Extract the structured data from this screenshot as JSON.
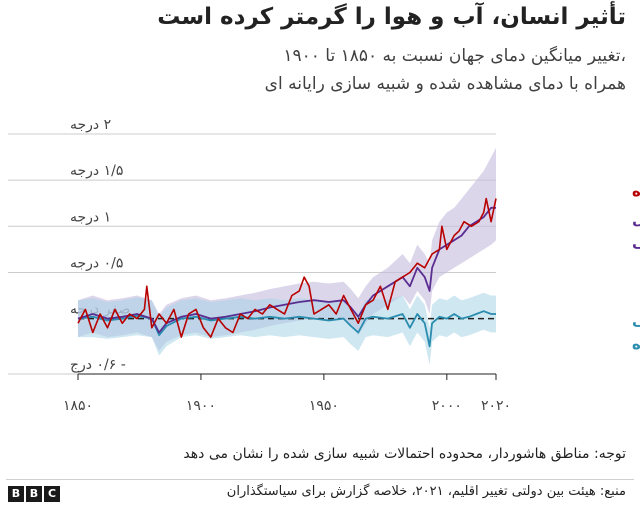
{
  "title": "تأثیر انسان، آب و هوا را گرمتر کرده است",
  "subtitle_line1": "تغییر میانگین دمای جهان نسبت به ۱۸۵۰ تا ۱۹۰۰،",
  "subtitle_line2": "همراه با دمای مشاهده شده و شبیه سازی رایانه ای",
  "note": "توجه: مناطق هاشوردار، محدوده احتمالات شبیه سازی شده را نشان می دهد",
  "source": "منبع: هیئت بین دولتی تغییر اقلیم، ۲۰۲۱، خلاصه گزارش برای سیاستگذاران",
  "brand_letters": [
    "B",
    "B",
    "C"
  ],
  "colors": {
    "observed": "#b80000",
    "human_natural": "#5a2d91",
    "human_natural_band": "#c5bbdd",
    "natural": "#2a8caf",
    "natural_band": "#a7d4e6",
    "zero_line": "#222222",
    "grid": "#cccccc"
  },
  "chart_data": {
    "type": "line",
    "xlim": [
      1850,
      2020
    ],
    "ylim": [
      -0.6,
      2
    ],
    "x_ticks": [
      1850,
      1900,
      1950,
      2000,
      2020
    ],
    "x_tick_labels": [
      "۱۸۵۰",
      "۱۹۰۰",
      "۱۹۵۰",
      "۲۰۰۰",
      "۲۰۲۰"
    ],
    "y_ticks": [
      -0.6,
      0,
      0.5,
      1,
      1.5,
      2
    ],
    "y_tick_labels": [
      "- ۰/۶ درج",
      "صفر درجه",
      "۰/۵ درجه",
      "۱ درجه",
      "۱/۵ درجه",
      "۲ درجه"
    ],
    "zero_line": "dashed",
    "grid": true,
    "series": [
      {
        "key": "observed",
        "name": "مشاهده شده",
        "x": [
          1850,
          1853,
          1856,
          1859,
          1862,
          1865,
          1868,
          1871,
          1874,
          1877,
          1878,
          1880,
          1883,
          1886,
          1889,
          1892,
          1895,
          1898,
          1901,
          1904,
          1907,
          1910,
          1913,
          1916,
          1919,
          1922,
          1925,
          1928,
          1931,
          1934,
          1937,
          1940,
          1942,
          1944,
          1946,
          1949,
          1952,
          1955,
          1958,
          1961,
          1964,
          1967,
          1970,
          1973,
          1976,
          1979,
          1982,
          1985,
          1988,
          1991,
          1994,
          1997,
          1998,
          2000,
          2003,
          2005,
          2007,
          2010,
          2013,
          2015,
          2016,
          2018,
          2020
        ],
        "y": [
          -0.05,
          0.1,
          -0.15,
          0.05,
          -0.1,
          0.1,
          -0.05,
          0.05,
          0.0,
          0.1,
          0.35,
          -0.1,
          0.05,
          -0.05,
          0.1,
          -0.2,
          0.05,
          0.1,
          -0.1,
          -0.2,
          0.0,
          -0.1,
          -0.15,
          0.05,
          0.0,
          0.1,
          0.05,
          0.15,
          0.1,
          0.05,
          0.25,
          0.3,
          0.45,
          0.35,
          0.05,
          0.1,
          0.15,
          0.05,
          0.25,
          0.1,
          -0.05,
          0.15,
          0.2,
          0.35,
          0.1,
          0.4,
          0.45,
          0.5,
          0.6,
          0.55,
          0.7,
          0.75,
          1.0,
          0.75,
          0.9,
          0.95,
          1.05,
          1.0,
          1.05,
          1.15,
          1.3,
          1.05,
          1.3
        ]
      },
      {
        "key": "human_natural",
        "name": "شبیه سازی عوامل انسانی و طبیعی",
        "x": [
          1850,
          1856,
          1862,
          1868,
          1874,
          1880,
          1883,
          1886,
          1892,
          1898,
          1904,
          1910,
          1916,
          1922,
          1928,
          1934,
          1940,
          1946,
          1952,
          1958,
          1961,
          1964,
          1967,
          1970,
          1976,
          1982,
          1985,
          1988,
          1991,
          1993,
          1994,
          1997,
          2000,
          2003,
          2006,
          2009,
          2012,
          2015,
          2018,
          2020
        ],
        "y": [
          0.0,
          0.05,
          0.0,
          0.02,
          0.05,
          0.0,
          -0.15,
          -0.05,
          0.02,
          0.05,
          0.0,
          0.02,
          0.05,
          0.08,
          0.12,
          0.15,
          0.18,
          0.2,
          0.18,
          0.2,
          0.12,
          0.02,
          0.15,
          0.25,
          0.35,
          0.45,
          0.35,
          0.55,
          0.45,
          0.3,
          0.55,
          0.75,
          0.8,
          0.85,
          0.9,
          1.0,
          1.05,
          1.1,
          1.2,
          1.2
        ],
        "band_lower": [
          -0.2,
          -0.15,
          -0.2,
          -0.18,
          -0.15,
          -0.2,
          -0.35,
          -0.25,
          -0.18,
          -0.15,
          -0.2,
          -0.18,
          -0.15,
          -0.12,
          -0.08,
          -0.05,
          -0.02,
          0.0,
          -0.02,
          0.0,
          -0.08,
          -0.18,
          -0.05,
          0.05,
          0.15,
          0.25,
          0.15,
          0.3,
          0.2,
          0.05,
          0.3,
          0.45,
          0.5,
          0.55,
          0.6,
          0.65,
          0.7,
          0.75,
          0.8,
          0.85
        ],
        "band_upper": [
          0.2,
          0.25,
          0.2,
          0.22,
          0.25,
          0.2,
          0.05,
          0.15,
          0.22,
          0.25,
          0.2,
          0.22,
          0.25,
          0.28,
          0.32,
          0.35,
          0.38,
          0.4,
          0.38,
          0.4,
          0.32,
          0.22,
          0.35,
          0.45,
          0.55,
          0.7,
          0.6,
          0.8,
          0.7,
          0.6,
          0.85,
          1.05,
          1.15,
          1.2,
          1.3,
          1.4,
          1.5,
          1.6,
          1.75,
          1.85
        ]
      },
      {
        "key": "natural",
        "name": "فقط عوامل طبیعی شبیه سازی شده",
        "x": [
          1850,
          1856,
          1862,
          1868,
          1874,
          1880,
          1883,
          1886,
          1892,
          1898,
          1904,
          1910,
          1916,
          1922,
          1928,
          1934,
          1940,
          1946,
          1952,
          1958,
          1961,
          1964,
          1967,
          1970,
          1976,
          1982,
          1985,
          1988,
          1991,
          1993,
          1994,
          1997,
          2000,
          2003,
          2006,
          2009,
          2012,
          2015,
          2018,
          2020
        ],
        "y": [
          0.0,
          0.02,
          -0.02,
          0.0,
          0.03,
          0.0,
          -0.18,
          -0.08,
          0.0,
          0.02,
          -0.02,
          0.0,
          0.02,
          0.0,
          0.02,
          0.0,
          0.02,
          0.0,
          -0.02,
          0.0,
          -0.08,
          -0.15,
          0.0,
          0.02,
          0.0,
          0.05,
          -0.1,
          0.05,
          -0.05,
          -0.3,
          -0.05,
          0.02,
          0.0,
          0.05,
          0.0,
          0.02,
          0.05,
          0.08,
          0.05,
          0.05
        ],
        "band_lower": [
          -0.2,
          -0.2,
          -0.22,
          -0.2,
          -0.18,
          -0.2,
          -0.4,
          -0.3,
          -0.2,
          -0.18,
          -0.22,
          -0.2,
          -0.18,
          -0.2,
          -0.18,
          -0.2,
          -0.18,
          -0.2,
          -0.22,
          -0.2,
          -0.28,
          -0.35,
          -0.2,
          -0.18,
          -0.2,
          -0.15,
          -0.3,
          -0.15,
          -0.25,
          -0.5,
          -0.25,
          -0.18,
          -0.2,
          -0.15,
          -0.2,
          -0.18,
          -0.15,
          -0.12,
          -0.15,
          -0.15
        ],
        "band_upper": [
          0.2,
          0.22,
          0.18,
          0.2,
          0.23,
          0.2,
          0.02,
          0.12,
          0.2,
          0.22,
          0.18,
          0.2,
          0.22,
          0.2,
          0.22,
          0.2,
          0.22,
          0.2,
          0.18,
          0.2,
          0.12,
          0.05,
          0.2,
          0.22,
          0.2,
          0.25,
          0.1,
          0.25,
          0.15,
          -0.1,
          0.15,
          0.22,
          0.2,
          0.25,
          0.2,
          0.22,
          0.25,
          0.28,
          0.25,
          0.25
        ]
      }
    ]
  }
}
